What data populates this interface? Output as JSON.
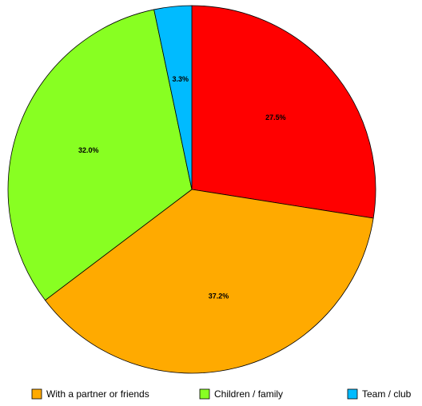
{
  "chart_data": {
    "type": "pie",
    "categories": [
      null,
      "With a partner or friends",
      "Children / family",
      "Team / club"
    ],
    "values": [
      27.5,
      37.2,
      32.0,
      3.3
    ],
    "value_labels": [
      "27.5%",
      "37.2%",
      "32.0%",
      "3.3%"
    ],
    "colors": [
      "#ff0000",
      "#ffaa00",
      "#88ff22",
      "#00bbff"
    ],
    "legend": "bottom"
  }
}
